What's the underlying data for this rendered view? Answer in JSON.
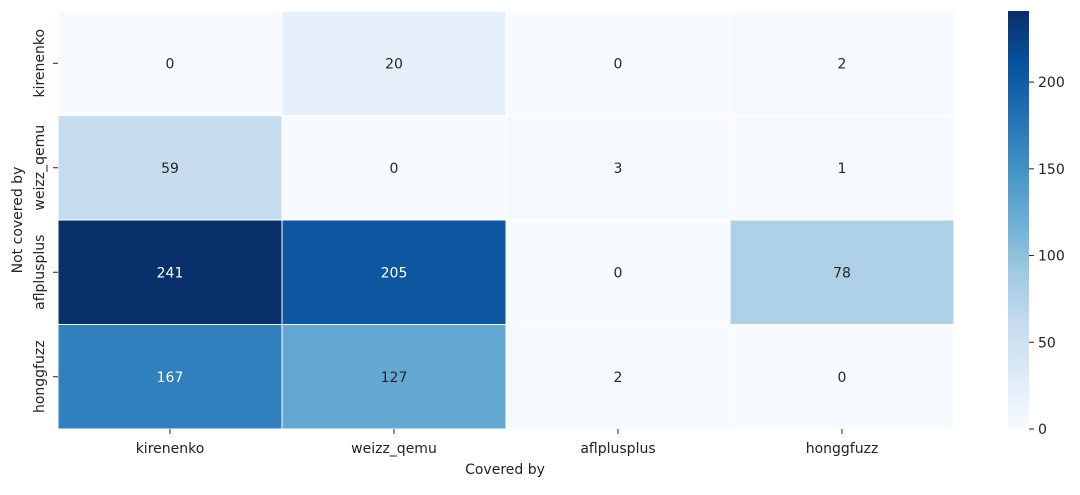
{
  "chart_data": {
    "type": "heatmap",
    "xlabel": "Covered by",
    "ylabel": "Not covered by",
    "x_categories": [
      "kirenenko",
      "weizz_qemu",
      "aflplusplus",
      "honggfuzz"
    ],
    "y_categories": [
      "kirenenko",
      "weizz_qemu",
      "aflplusplus",
      "honggfuzz"
    ],
    "values": [
      [
        0,
        20,
        0,
        2
      ],
      [
        59,
        0,
        3,
        1
      ],
      [
        241,
        205,
        0,
        78
      ],
      [
        167,
        127,
        2,
        0
      ]
    ],
    "colorbar": {
      "range": [
        0,
        241
      ],
      "ticks": [
        0,
        50,
        100,
        150,
        200
      ],
      "colormap": "Blues",
      "low_color": "#f7fbff",
      "high_color": "#08306b"
    }
  }
}
